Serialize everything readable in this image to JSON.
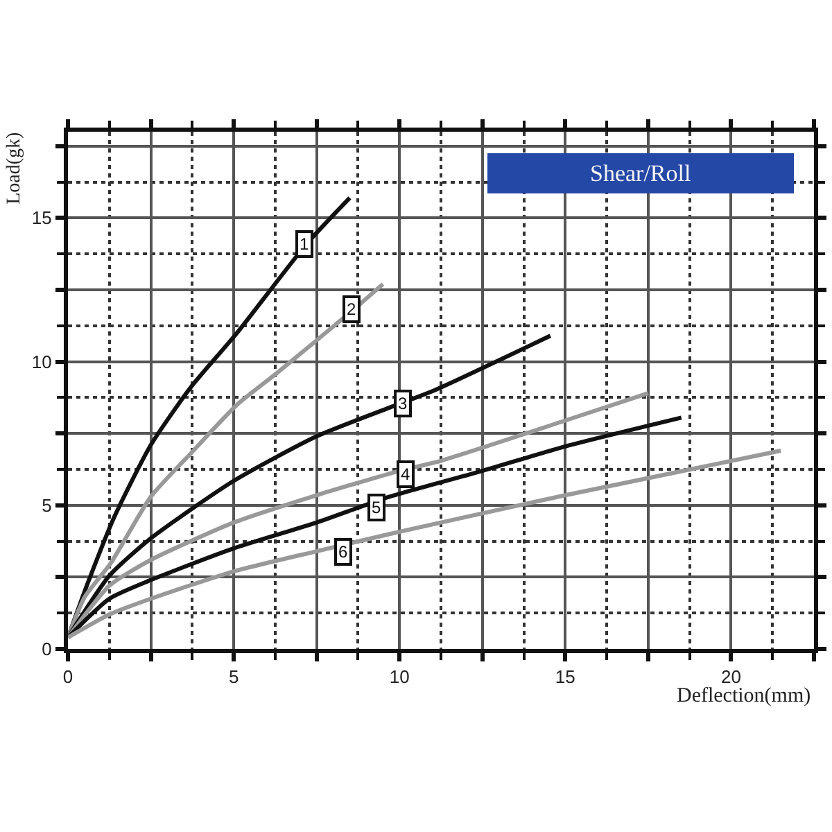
{
  "chart_data": {
    "type": "line",
    "title": "Shear/Roll",
    "xlabel": "Deflection(mm)",
    "ylabel": "Load(gk)",
    "xlim": [
      0,
      22.5
    ],
    "xticks": [
      0,
      {
        "value": 2.5,
        "label": null
      },
      5,
      {
        "value": 7.5,
        "label": null
      },
      10,
      {
        "value": 12.5,
        "label": null
      },
      15,
      {
        "value": 17.5,
        "label": null
      },
      20,
      {
        "value": 22.5,
        "label": null
      }
    ],
    "ylim": [
      0,
      18
    ],
    "yticks": [
      0,
      {
        "value": 2.5,
        "label": null
      },
      5,
      {
        "value": 7.5,
        "label": null
      },
      10,
      {
        "value": 12.5,
        "label": null
      },
      15,
      {
        "value": 17.5,
        "label": null
      }
    ],
    "grid": true,
    "line_style": "solid",
    "marker": "none",
    "series": [
      {
        "color": "#111111",
        "x": [
          0,
          0.6,
          1.4,
          2.5,
          3.7,
          5.1,
          7.2,
          8.5
        ],
        "values": [
          0.4,
          2.3,
          4.6,
          7.1,
          9.1,
          11.0,
          14.1,
          15.7
        ]
      },
      {
        "color": "#999999",
        "x": [
          0,
          0.5,
          1.3,
          2.5,
          3.7,
          5.1,
          6.3,
          8.6,
          9.5
        ],
        "values": [
          0.4,
          1.8,
          3.0,
          5.3,
          6.8,
          8.5,
          9.6,
          11.8,
          12.7
        ]
      },
      {
        "color": "#111111",
        "x": [
          0,
          1.25,
          2.5,
          5,
          7.5,
          9.7,
          11.05,
          14.55
        ],
        "values": [
          0.4,
          2.55,
          3.85,
          5.85,
          7.4,
          8.4,
          9.0,
          10.9
        ]
      },
      {
        "color": "#999999",
        "x": [
          0,
          1.25,
          2.5,
          5,
          7.5,
          10,
          11.25,
          15,
          17.5
        ],
        "values": [
          0.4,
          2.2,
          3.1,
          4.4,
          5.35,
          6.2,
          6.55,
          7.95,
          8.9
        ]
      },
      {
        "color": "#111111",
        "x": [
          0,
          1.25,
          2.5,
          5,
          7.5,
          9.7,
          12.5,
          15,
          18.5
        ],
        "values": [
          0.4,
          1.75,
          2.4,
          3.5,
          4.4,
          5.3,
          6.2,
          7.05,
          8.05
        ]
      },
      {
        "color": "#999999",
        "x": [
          0,
          1.25,
          2.5,
          5,
          7.5,
          9.7,
          11.25,
          15,
          21.5
        ],
        "values": [
          0.4,
          1.2,
          1.75,
          2.7,
          3.4,
          4.0,
          4.4,
          5.35,
          6.9
        ]
      }
    ],
    "annotations": [
      {
        "text": "1",
        "x": 7.15,
        "y": 14.1
      },
      {
        "text": "2",
        "x": 8.55,
        "y": 11.8
      },
      {
        "text": "3",
        "x": 10.1,
        "y": 8.55
      },
      {
        "text": "4",
        "x": 10.2,
        "y": 6.1
      },
      {
        "text": "5",
        "x": 9.3,
        "y": 4.9
      },
      {
        "text": "6",
        "x": 8.3,
        "y": 3.4
      }
    ]
  }
}
